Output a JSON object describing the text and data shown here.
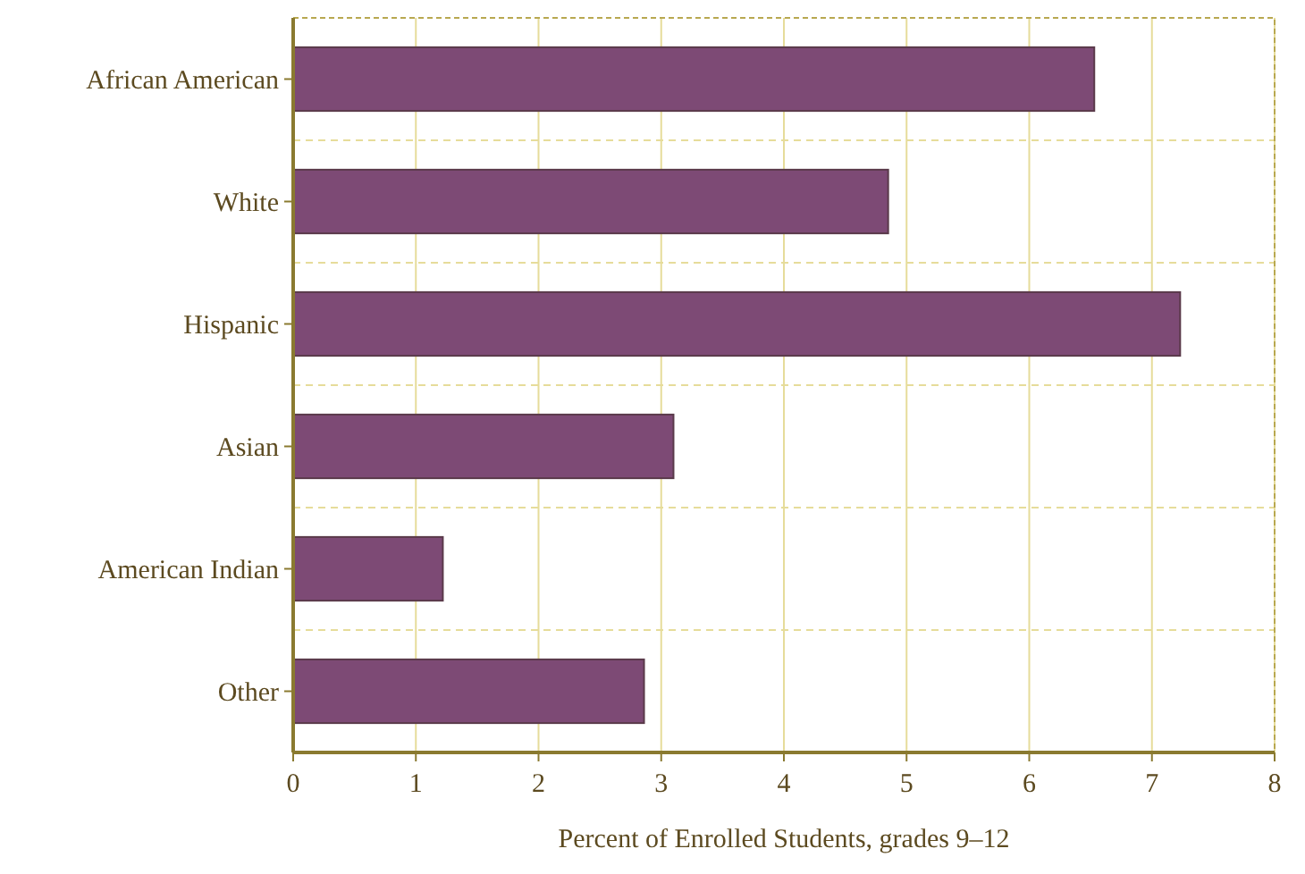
{
  "chart_data": {
    "type": "bar",
    "orientation": "horizontal",
    "xlabel": "Percent of Enrolled Students, grades 9–12",
    "categories": [
      "African American",
      "White",
      "Hispanic",
      "Asian",
      "American Indian",
      "Other"
    ],
    "values": [
      6.53,
      4.85,
      7.23,
      3.1,
      1.22,
      2.86
    ],
    "color": "#7d4a75",
    "xlim": [
      0,
      8
    ],
    "xticks": [
      0,
      1,
      2,
      3,
      4,
      5,
      6,
      7,
      8
    ],
    "grid": true
  }
}
